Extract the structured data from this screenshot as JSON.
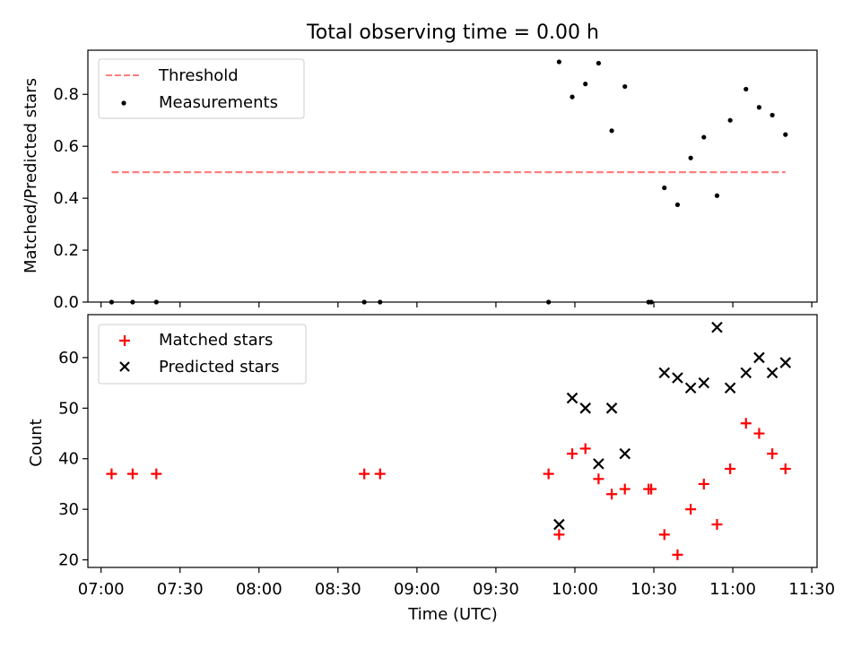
{
  "chart_data": [
    {
      "type": "scatter",
      "title": "Total observing time = 0.00 h",
      "ylabel": "Matched/Predicted stars",
      "ylim": [
        0.0,
        0.97
      ],
      "yticks": [
        "0.0",
        "0.2",
        "0.4",
        "0.6",
        "0.8"
      ],
      "legend": {
        "position": "top-left",
        "entries": [
          "Threshold",
          "Measurements"
        ]
      },
      "grid": false,
      "threshold": {
        "name": "Threshold",
        "value": 0.5,
        "x_range": [
          "07:04",
          "11:20"
        ],
        "color": "#ff7f7f"
      },
      "series": [
        {
          "name": "Measurements",
          "color": "#000000",
          "points": [
            [
              "07:04",
              0.0
            ],
            [
              "07:12",
              0.0
            ],
            [
              "07:21",
              0.0
            ],
            [
              "08:40",
              0.0
            ],
            [
              "08:46",
              0.0
            ],
            [
              "09:50",
              0.0
            ],
            [
              "09:54",
              0.925
            ],
            [
              "09:59",
              0.79
            ],
            [
              "10:04",
              0.84
            ],
            [
              "10:09",
              0.92
            ],
            [
              "10:14",
              0.66
            ],
            [
              "10:19",
              0.83
            ],
            [
              "10:28",
              0.0
            ],
            [
              "10:29",
              0.0
            ],
            [
              "10:34",
              0.44
            ],
            [
              "10:39",
              0.375
            ],
            [
              "10:44",
              0.555
            ],
            [
              "10:49",
              0.635
            ],
            [
              "10:54",
              0.41
            ],
            [
              "10:59",
              0.7
            ],
            [
              "11:05",
              0.82
            ],
            [
              "11:10",
              0.75
            ],
            [
              "11:15",
              0.72
            ],
            [
              "11:20",
              0.645
            ]
          ]
        }
      ]
    },
    {
      "type": "scatter",
      "ylabel": "Count",
      "xlabel": "Time (UTC)",
      "ylim": [
        18.5,
        68.5
      ],
      "yticks": [
        "20",
        "30",
        "40",
        "50",
        "60"
      ],
      "xlim": [
        "06:55",
        "11:32"
      ],
      "xticks": [
        "07:00",
        "07:30",
        "08:00",
        "08:30",
        "09:00",
        "09:30",
        "10:00",
        "10:30",
        "11:00",
        "11:30"
      ],
      "legend": {
        "position": "top-left",
        "entries": [
          "Matched stars",
          "Predicted stars"
        ]
      },
      "grid": false,
      "series": [
        {
          "name": "Matched stars",
          "marker": "plus",
          "color": "#ff0000",
          "points": [
            [
              "07:04",
              37
            ],
            [
              "07:12",
              37
            ],
            [
              "07:21",
              37
            ],
            [
              "08:40",
              37
            ],
            [
              "08:46",
              37
            ],
            [
              "09:50",
              37
            ],
            [
              "09:54",
              25
            ],
            [
              "09:59",
              41
            ],
            [
              "10:04",
              42
            ],
            [
              "10:09",
              36
            ],
            [
              "10:14",
              33
            ],
            [
              "10:19",
              34
            ],
            [
              "10:28",
              34
            ],
            [
              "10:29",
              34
            ],
            [
              "10:34",
              25
            ],
            [
              "10:39",
              21
            ],
            [
              "10:44",
              30
            ],
            [
              "10:49",
              35
            ],
            [
              "10:54",
              27
            ],
            [
              "10:59",
              38
            ],
            [
              "11:05",
              47
            ],
            [
              "11:10",
              45
            ],
            [
              "11:15",
              41
            ],
            [
              "11:20",
              38
            ]
          ]
        },
        {
          "name": "Predicted stars",
          "marker": "x",
          "color": "#000000",
          "points": [
            [
              "09:54",
              27
            ],
            [
              "09:59",
              52
            ],
            [
              "10:04",
              50
            ],
            [
              "10:09",
              39
            ],
            [
              "10:14",
              50
            ],
            [
              "10:19",
              41
            ],
            [
              "10:34",
              57
            ],
            [
              "10:39",
              56
            ],
            [
              "10:44",
              54
            ],
            [
              "10:49",
              55
            ],
            [
              "10:54",
              66
            ],
            [
              "10:59",
              54
            ],
            [
              "11:05",
              57
            ],
            [
              "11:10",
              60
            ],
            [
              "11:15",
              57
            ],
            [
              "11:20",
              59
            ]
          ]
        }
      ]
    }
  ]
}
